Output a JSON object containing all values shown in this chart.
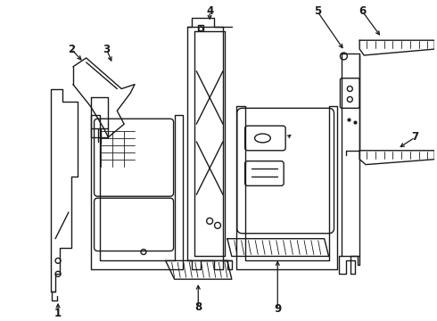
{
  "background_color": "#ffffff",
  "line_color": "#1a1a1a",
  "line_width": 1.0,
  "figsize": [
    4.9,
    3.6
  ],
  "dpi": 100
}
